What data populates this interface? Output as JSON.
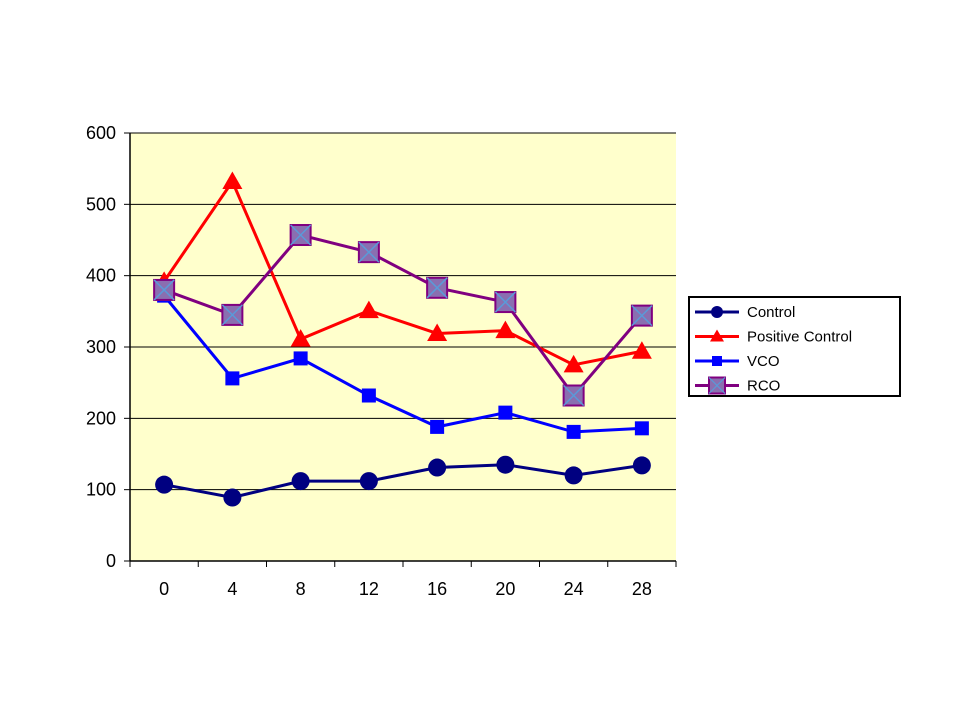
{
  "chart_data": {
    "type": "line",
    "x": [
      0,
      4,
      8,
      12,
      16,
      20,
      24,
      28
    ],
    "ylim": [
      0,
      600
    ],
    "yticks": [
      0,
      100,
      200,
      300,
      400,
      500,
      600
    ],
    "grid": true,
    "legend_position": "right",
    "plot_background": "#ffffcc",
    "series": [
      {
        "name": "Control",
        "color": "#000080",
        "marker": "circle",
        "values": [
          107,
          89,
          112,
          112,
          131,
          135,
          120,
          134
        ]
      },
      {
        "name": "Positive Control",
        "color": "#ff0000",
        "marker": "triangle",
        "values": [
          392,
          532,
          311,
          351,
          319,
          323,
          275,
          294
        ]
      },
      {
        "name": "VCO",
        "color": "#0000ff",
        "marker": "square",
        "values": [
          372,
          256,
          284,
          232,
          188,
          208,
          181,
          186
        ]
      },
      {
        "name": "RCO",
        "color": "#800080",
        "marker": "x-square",
        "values": [
          380,
          345,
          457,
          433,
          383,
          363,
          232,
          344
        ]
      }
    ]
  }
}
